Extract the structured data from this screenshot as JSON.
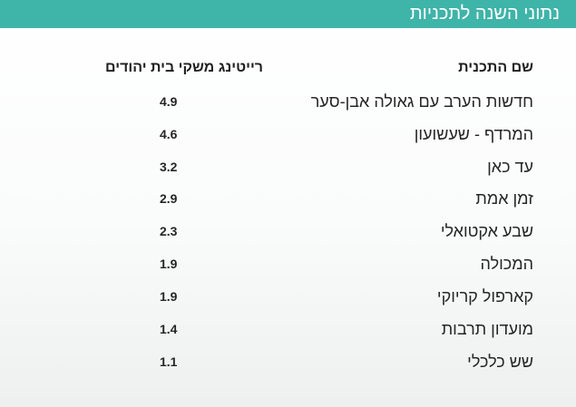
{
  "header": {
    "title": "נתוני השנה לתכניות"
  },
  "table": {
    "columns": {
      "name": "שם התכנית",
      "rating": "רייטינג משקי בית יהודים"
    },
    "rows": [
      {
        "name": "חדשות הערב עם גאולה אבן-סער",
        "rating": "4.9"
      },
      {
        "name": "המרדף - שעשועון",
        "rating": "4.6"
      },
      {
        "name": "עד כאן",
        "rating": "3.2"
      },
      {
        "name": "זמן אמת",
        "rating": "2.9"
      },
      {
        "name": "שבע אקטואלי",
        "rating": "2.3"
      },
      {
        "name": "המכולה",
        "rating": "1.9"
      },
      {
        "name": "קארפול קריוקי",
        "rating": "1.9"
      },
      {
        "name": "מועדון תרבות",
        "rating": "1.4"
      },
      {
        "name": "שש כלכלי",
        "rating": "1.1"
      }
    ]
  },
  "colors": {
    "header_bg": "#3fb4a9",
    "header_text": "#ffffff",
    "body_text": "#262626"
  }
}
